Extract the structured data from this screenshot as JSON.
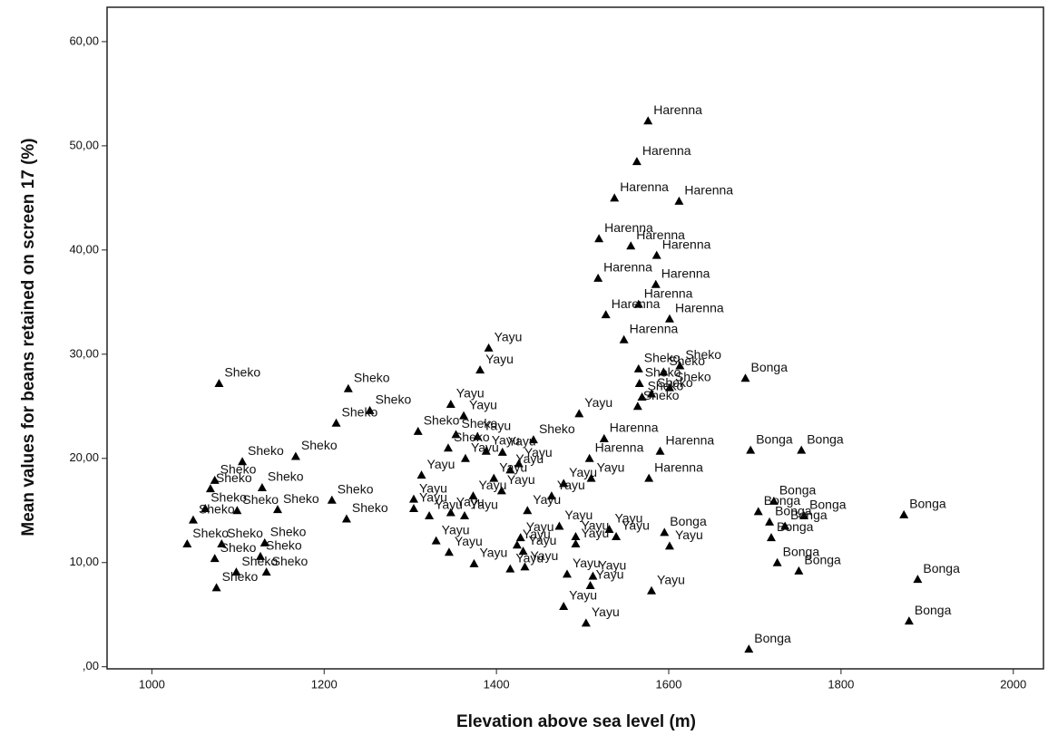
{
  "chart_data": {
    "type": "scatter",
    "x_label": "Elevation above sea level (m)",
    "y_label": "Mean values for beans retained on screen 17 (%)",
    "color": "#000000",
    "xlim": [
      948,
      2035
    ],
    "ylim": [
      -0.2,
      63.3
    ],
    "xticks": [
      1000,
      1200,
      1400,
      1600,
      1800,
      2000
    ],
    "yticks": [
      {
        "value": 0,
        "label": ",00"
      },
      {
        "value": 10,
        "label": "10,00"
      },
      {
        "value": 20,
        "label": "20,00"
      },
      {
        "value": 30,
        "label": "30,00"
      },
      {
        "value": 40,
        "label": "40,00"
      },
      {
        "value": 50,
        "label": "50,00"
      },
      {
        "value": 60,
        "label": "60,00"
      }
    ],
    "x": [
      1576,
      1563,
      1537,
      1612,
      1519,
      1556,
      1586,
      1518,
      1585,
      1565,
      1527,
      1601,
      1548,
      1391,
      1613,
      1689,
      1078,
      1228,
      1381,
      1565,
      1594,
      1566,
      1601,
      1569,
      1580,
      1564,
      1347,
      1253,
      1496,
      1214,
      1362,
      1309,
      1353,
      1378,
      1525,
      1443,
      1695,
      1754,
      1590,
      1407,
      1167,
      1388,
      1105,
      1344,
      1364,
      1073,
      1508,
      1426,
      1416,
      1397,
      1068,
      1128,
      1577,
      1478,
      1510,
      1313,
      1406,
      1304,
      1209,
      1464,
      1373,
      1722,
      1062,
      1304,
      1226,
      1146,
      1099,
      1347,
      1363,
      1704,
      1873,
      1757,
      1048,
      1322,
      1436,
      1717,
      1735,
      1081,
      1041,
      1473,
      1531,
      1595,
      1492,
      1539,
      1719,
      1330,
      1428,
      1131,
      1424,
      1492,
      1431,
      1601,
      1345,
      1126,
      1073,
      1374,
      1726,
      1133,
      1098,
      1433,
      1416,
      1751,
      1889,
      1512,
      1482,
      1075,
      1509,
      1580,
      1478,
      1879,
      1504,
      1693
    ],
    "values": [
      52.4,
      48.5,
      45.0,
      44.7,
      41.1,
      40.4,
      39.5,
      37.3,
      36.7,
      34.8,
      33.8,
      33.4,
      31.4,
      30.6,
      28.9,
      27.7,
      27.2,
      26.7,
      28.5,
      28.6,
      28.3,
      27.2,
      26.8,
      25.9,
      26.2,
      25.0,
      25.2,
      24.6,
      24.3,
      23.4,
      24.1,
      22.6,
      22.3,
      22.1,
      21.9,
      21.8,
      20.8,
      20.8,
      20.7,
      20.6,
      20.2,
      20.7,
      19.7,
      21.0,
      20.0,
      17.9,
      20.0,
      19.5,
      18.9,
      18.1,
      17.1,
      17.2,
      18.1,
      17.6,
      18.1,
      18.4,
      16.9,
      16.1,
      16.0,
      16.4,
      16.4,
      15.9,
      15.2,
      15.2,
      14.2,
      15.1,
      15.0,
      14.8,
      14.5,
      14.9,
      14.6,
      14.5,
      14.1,
      14.5,
      15.0,
      13.9,
      13.5,
      11.8,
      11.8,
      13.5,
      13.2,
      12.9,
      12.5,
      12.5,
      12.4,
      12.1,
      12.4,
      11.9,
      11.7,
      11.8,
      11.1,
      11.6,
      11.0,
      10.6,
      10.4,
      9.9,
      10.0,
      9.1,
      9.1,
      9.6,
      9.4,
      9.2,
      8.4,
      8.7,
      8.9,
      7.6,
      7.8,
      7.3,
      5.8,
      4.4,
      4.2,
      1.7
    ],
    "point_labels": [
      "Harenna",
      "Harenna",
      "Harenna",
      "Harenna",
      "Harenna",
      "Harenna",
      "Harenna",
      "Harenna",
      "Harenna",
      "Harenna",
      "Harenna",
      "Harenna",
      "Harenna",
      "Yayu",
      "Sheko",
      "Bonga",
      "Sheko",
      "Sheko",
      "Yayu",
      "Sheko",
      "Sheko",
      "Sheko",
      "Sheko",
      "Sheko",
      "Sheko",
      "Sheko",
      "Yayu",
      "Sheko",
      "Yayu",
      "Sheko",
      "Yayu",
      "Sheko",
      "Sheko",
      "Yayu",
      "Harenna",
      "Sheko",
      "Bonga",
      "Bonga",
      "Harenna",
      "Yayu",
      "Sheko",
      "Yayu",
      "Sheko",
      "Sheko",
      "Yayu",
      "Sheko",
      "Harenna",
      "Yayu",
      "Yayu",
      "Yayu",
      "Sheko",
      "Sheko",
      "Harenna",
      "Yayu",
      "Yayu",
      "Yayu",
      "Yayu",
      "Yayu",
      "Sheko",
      "Yayu",
      "Yayu",
      "Bonga",
      "Sheko",
      "Yayu",
      "Sheko",
      "Sheko",
      "Sheko",
      "Yayu",
      "Yayu",
      "Bonga",
      "Bonga",
      "Bonga",
      "Sheko",
      "Yayu",
      "Yayu",
      "Bonga",
      "Bonga",
      "Sheko",
      "Sheko",
      "Yayu",
      "Yayu",
      "Bonga",
      "Yayu",
      "Yayu",
      "Bonga",
      "Yayu",
      "Yayu",
      "Sheko",
      "Yayu",
      "Yayu",
      "Yayu",
      "Yayu",
      "Yayu",
      "Sheko",
      "Sheko",
      "Yayu",
      "Bonga",
      "Sheko",
      "Sheko",
      "Yayu",
      "Yayu",
      "Bonga",
      "Bonga",
      "Yayu",
      "Yayu",
      "Sheko",
      "Yayu",
      "Yayu",
      "Yayu",
      "Bonga",
      "Yayu",
      "Bonga"
    ]
  }
}
